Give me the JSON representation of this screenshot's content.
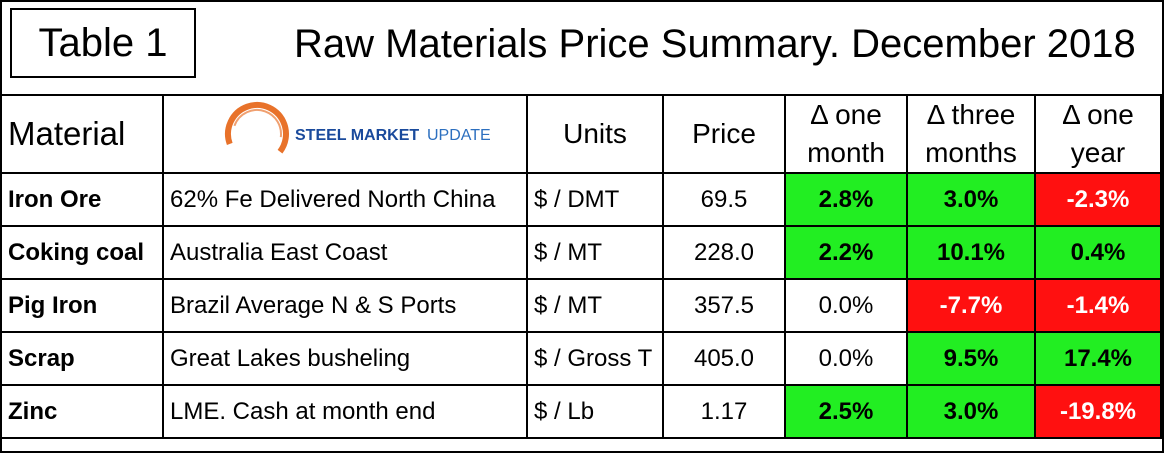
{
  "table_label": "Table 1",
  "title": "Raw Materials Price Summary. December 2018",
  "logo": {
    "part1": "STEEL MARKET",
    "part2": "UPDATE",
    "colors": {
      "blue": "#1a4a9c",
      "orange": "#e8722a"
    }
  },
  "headers": {
    "material": "Material",
    "units": "Units",
    "price": "Price",
    "one_month": [
      "Δ one",
      "month"
    ],
    "three_months": [
      "Δ three",
      "months"
    ],
    "one_year": [
      "Δ one",
      "year"
    ]
  },
  "colors": {
    "positive": "#22ee22",
    "negative": "#ff1010"
  },
  "rows": [
    {
      "material": "Iron Ore",
      "description": "62% Fe Delivered North China",
      "units": "$ / DMT",
      "price": "69.5",
      "one_month": "2.8%",
      "three_months": "3.0%",
      "one_year": "-2.3%"
    },
    {
      "material": "Coking coal",
      "description": "Australia East Coast",
      "units": "$ / MT",
      "price": "228.0",
      "one_month": "2.2%",
      "three_months": "10.1%",
      "one_year": "0.4%"
    },
    {
      "material": "Pig Iron",
      "description": "Brazil Average N & S Ports",
      "units": "$ / MT",
      "price": "357.5",
      "one_month": "0.0%",
      "three_months": "-7.7%",
      "one_year": "-1.4%"
    },
    {
      "material": "Scrap",
      "description": "Great Lakes busheling",
      "units": "$ / Gross T",
      "price": "405.0",
      "one_month": "0.0%",
      "three_months": "9.5%",
      "one_year": "17.4%"
    },
    {
      "material": "Zinc",
      "description": "LME. Cash at month end",
      "units": "$ / Lb",
      "price": "1.17",
      "one_month": "2.5%",
      "three_months": "3.0%",
      "one_year": "-19.8%"
    }
  ]
}
